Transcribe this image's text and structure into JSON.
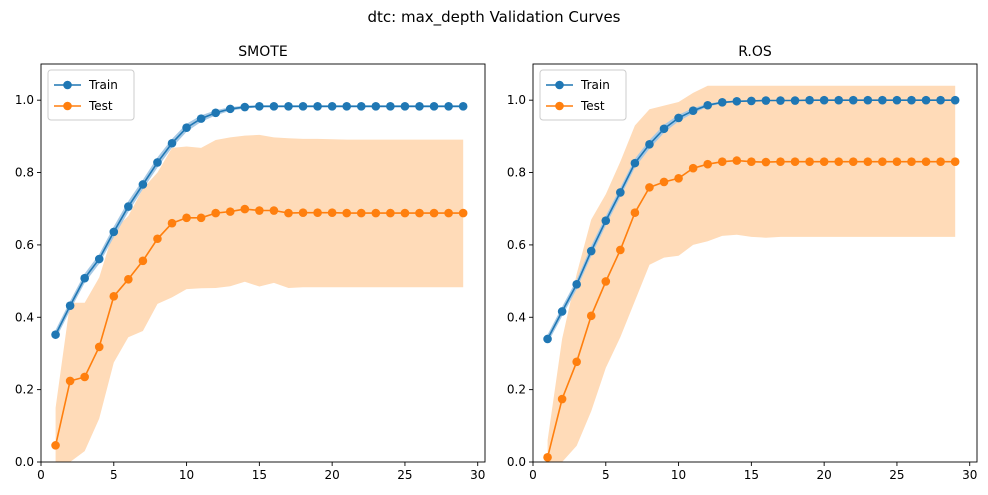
{
  "suptitle": "dtc: max_depth Validation Curves",
  "colors": {
    "train": "#1f77b4",
    "test": "#ff7f0e",
    "test_band": "#ffdbb8",
    "train_band": "#a6c8e4"
  },
  "chart_data": [
    {
      "type": "line",
      "title": "SMOTE",
      "xlabel": "",
      "ylabel": "",
      "xlim": [
        0,
        30.5
      ],
      "ylim": [
        0,
        1.1
      ],
      "xticks": [
        0,
        5,
        10,
        15,
        20,
        25,
        30
      ],
      "yticks": [
        0.0,
        0.2,
        0.4,
        0.6,
        0.8,
        1.0
      ],
      "legend": "top-left",
      "grid": false,
      "x": [
        1,
        2,
        3,
        4,
        5,
        6,
        7,
        8,
        9,
        10,
        11,
        12,
        13,
        14,
        15,
        16,
        17,
        18,
        19,
        20,
        21,
        22,
        23,
        24,
        25,
        26,
        27,
        28,
        29
      ],
      "series": [
        {
          "name": "Train",
          "values": [
            0.352,
            0.432,
            0.508,
            0.561,
            0.636,
            0.706,
            0.767,
            0.828,
            0.881,
            0.924,
            0.949,
            0.965,
            0.976,
            0.981,
            0.983,
            0.983,
            0.983,
            0.983,
            0.983,
            0.983,
            0.983,
            0.983,
            0.983,
            0.983,
            0.983,
            0.983,
            0.983,
            0.983,
            0.983
          ],
          "band_upper": [
            0.365,
            0.445,
            0.521,
            0.574,
            0.651,
            0.721,
            0.78,
            0.842,
            0.893,
            0.935,
            0.958,
            0.972,
            0.981,
            0.985,
            0.986,
            0.986,
            0.986,
            0.986,
            0.986,
            0.986,
            0.986,
            0.986,
            0.986,
            0.986,
            0.986,
            0.986,
            0.986,
            0.986,
            0.986
          ],
          "band_lower": [
            0.339,
            0.419,
            0.495,
            0.548,
            0.621,
            0.691,
            0.754,
            0.814,
            0.869,
            0.913,
            0.94,
            0.958,
            0.971,
            0.977,
            0.98,
            0.98,
            0.98,
            0.98,
            0.98,
            0.98,
            0.98,
            0.98,
            0.98,
            0.98,
            0.98,
            0.98,
            0.98,
            0.98,
            0.98
          ]
        },
        {
          "name": "Test",
          "values": [
            0.046,
            0.224,
            0.235,
            0.318,
            0.458,
            0.505,
            0.556,
            0.617,
            0.66,
            0.675,
            0.675,
            0.688,
            0.692,
            0.699,
            0.695,
            0.695,
            0.688,
            0.689,
            0.689,
            0.689,
            0.688,
            0.688,
            0.688,
            0.688,
            0.688,
            0.688,
            0.688,
            0.688,
            0.688
          ],
          "band_upper": [
            0.15,
            0.44,
            0.44,
            0.51,
            0.64,
            0.68,
            0.755,
            0.8,
            0.868,
            0.872,
            0.868,
            0.89,
            0.897,
            0.902,
            0.904,
            0.897,
            0.895,
            0.893,
            0.893,
            0.892,
            0.891,
            0.891,
            0.891,
            0.891,
            0.891,
            0.891,
            0.891,
            0.891,
            0.891
          ],
          "band_lower": [
            0.0,
            0.0,
            0.03,
            0.12,
            0.275,
            0.345,
            0.362,
            0.437,
            0.455,
            0.478,
            0.48,
            0.481,
            0.486,
            0.498,
            0.485,
            0.495,
            0.481,
            0.483,
            0.483,
            0.483,
            0.483,
            0.483,
            0.483,
            0.483,
            0.483,
            0.483,
            0.483,
            0.483,
            0.483
          ]
        }
      ]
    },
    {
      "type": "line",
      "title": "R.OS",
      "xlabel": "",
      "ylabel": "",
      "xlim": [
        0,
        30.5
      ],
      "ylim": [
        0,
        1.1
      ],
      "xticks": [
        0,
        5,
        10,
        15,
        20,
        25,
        30
      ],
      "yticks": [
        0.0,
        0.2,
        0.4,
        0.6,
        0.8,
        1.0
      ],
      "legend": "top-left",
      "grid": false,
      "x": [
        1,
        2,
        3,
        4,
        5,
        6,
        7,
        8,
        9,
        10,
        11,
        12,
        13,
        14,
        15,
        16,
        17,
        18,
        19,
        20,
        21,
        22,
        23,
        24,
        25,
        26,
        27,
        28,
        29
      ],
      "series": [
        {
          "name": "Train",
          "values": [
            0.34,
            0.416,
            0.491,
            0.583,
            0.667,
            0.745,
            0.826,
            0.878,
            0.921,
            0.951,
            0.971,
            0.986,
            0.994,
            0.997,
            0.998,
            0.999,
            0.999,
            0.999,
            1.0,
            1.0,
            1.0,
            1.0,
            1.0,
            1.0,
            1.0,
            1.0,
            1.0,
            1.0,
            1.0
          ],
          "band_upper": [
            0.352,
            0.429,
            0.504,
            0.597,
            0.68,
            0.758,
            0.838,
            0.89,
            0.932,
            0.96,
            0.978,
            0.99,
            0.997,
            0.999,
            1.0,
            1.0,
            1.0,
            1.0,
            1.0,
            1.0,
            1.0,
            1.0,
            1.0,
            1.0,
            1.0,
            1.0,
            1.0,
            1.0,
            1.0
          ],
          "band_lower": [
            0.328,
            0.403,
            0.478,
            0.569,
            0.654,
            0.732,
            0.814,
            0.866,
            0.91,
            0.942,
            0.964,
            0.982,
            0.991,
            0.995,
            0.996,
            0.998,
            0.998,
            0.998,
            0.999,
            0.999,
            0.999,
            0.999,
            0.999,
            0.999,
            0.999,
            0.999,
            0.999,
            0.999,
            0.999
          ]
        },
        {
          "name": "Test",
          "values": [
            0.013,
            0.174,
            0.277,
            0.404,
            0.499,
            0.586,
            0.689,
            0.759,
            0.774,
            0.784,
            0.812,
            0.823,
            0.83,
            0.833,
            0.83,
            0.829,
            0.83,
            0.83,
            0.83,
            0.83,
            0.83,
            0.83,
            0.83,
            0.83,
            0.83,
            0.83,
            0.83,
            0.83,
            0.83
          ],
          "band_upper": [
            0.06,
            0.34,
            0.52,
            0.67,
            0.74,
            0.83,
            0.93,
            0.975,
            0.985,
            0.995,
            1.02,
            1.04,
            1.04,
            1.04,
            1.04,
            1.04,
            1.04,
            1.04,
            1.04,
            1.04,
            1.04,
            1.04,
            1.04,
            1.04,
            1.04,
            1.04,
            1.04,
            1.04,
            1.04
          ],
          "band_lower": [
            0.0,
            0.0,
            0.045,
            0.14,
            0.26,
            0.345,
            0.445,
            0.545,
            0.565,
            0.57,
            0.6,
            0.61,
            0.625,
            0.628,
            0.622,
            0.62,
            0.622,
            0.622,
            0.622,
            0.622,
            0.622,
            0.622,
            0.622,
            0.622,
            0.622,
            0.622,
            0.622,
            0.622,
            0.622
          ]
        }
      ]
    }
  ]
}
